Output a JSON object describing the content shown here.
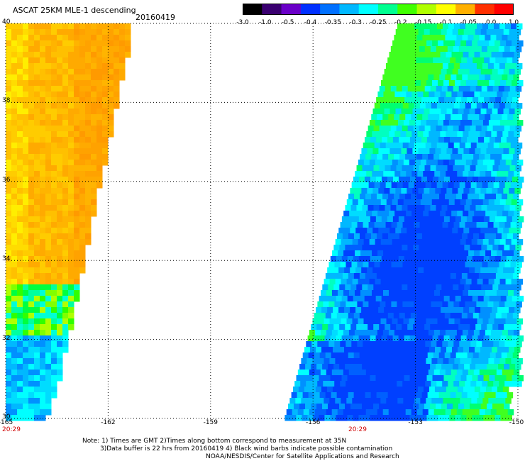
{
  "header": {
    "title": "ASCAT 25KM MLE-1 descending",
    "date": "20160419"
  },
  "colorbar": {
    "tick_labels": [
      "-3.0",
      "-1.0",
      "-0.5",
      "-0.4",
      "-0.35",
      "-0.3",
      "-0.25",
      "-0.2",
      "-0.15",
      "-0.1",
      "-0.05",
      "0.0",
      "1.0"
    ],
    "colors": [
      "#000000",
      "#3a0070",
      "#6a00c8",
      "#0030ff",
      "#0070ff",
      "#00b8ff",
      "#00ffff",
      "#00ff90",
      "#40ff00",
      "#b0ff00",
      "#ffff00",
      "#ffb000",
      "#ff3000",
      "#ff0000"
    ]
  },
  "axes": {
    "lat_labels": [
      "40",
      "38",
      "36",
      "34",
      "32",
      "30"
    ],
    "lon_labels": [
      "-165",
      "-162",
      "-159",
      "-156",
      "-153",
      "-150"
    ],
    "lat_range": [
      30,
      40
    ],
    "lon_range": [
      -165,
      -150
    ]
  },
  "pass_times": [
    "20:29",
    "20:29"
  ],
  "notes": {
    "line1": "Note: 1) Times are GMT 2)Times along bottom correspond to measurement at 35N",
    "line2": "3)Data buffer is 22 hrs from 20160419 4) Black wind barbs indicate possible contamination",
    "line3": "NOAA/NESDIS/Center for Satellite Applications and Research"
  }
}
